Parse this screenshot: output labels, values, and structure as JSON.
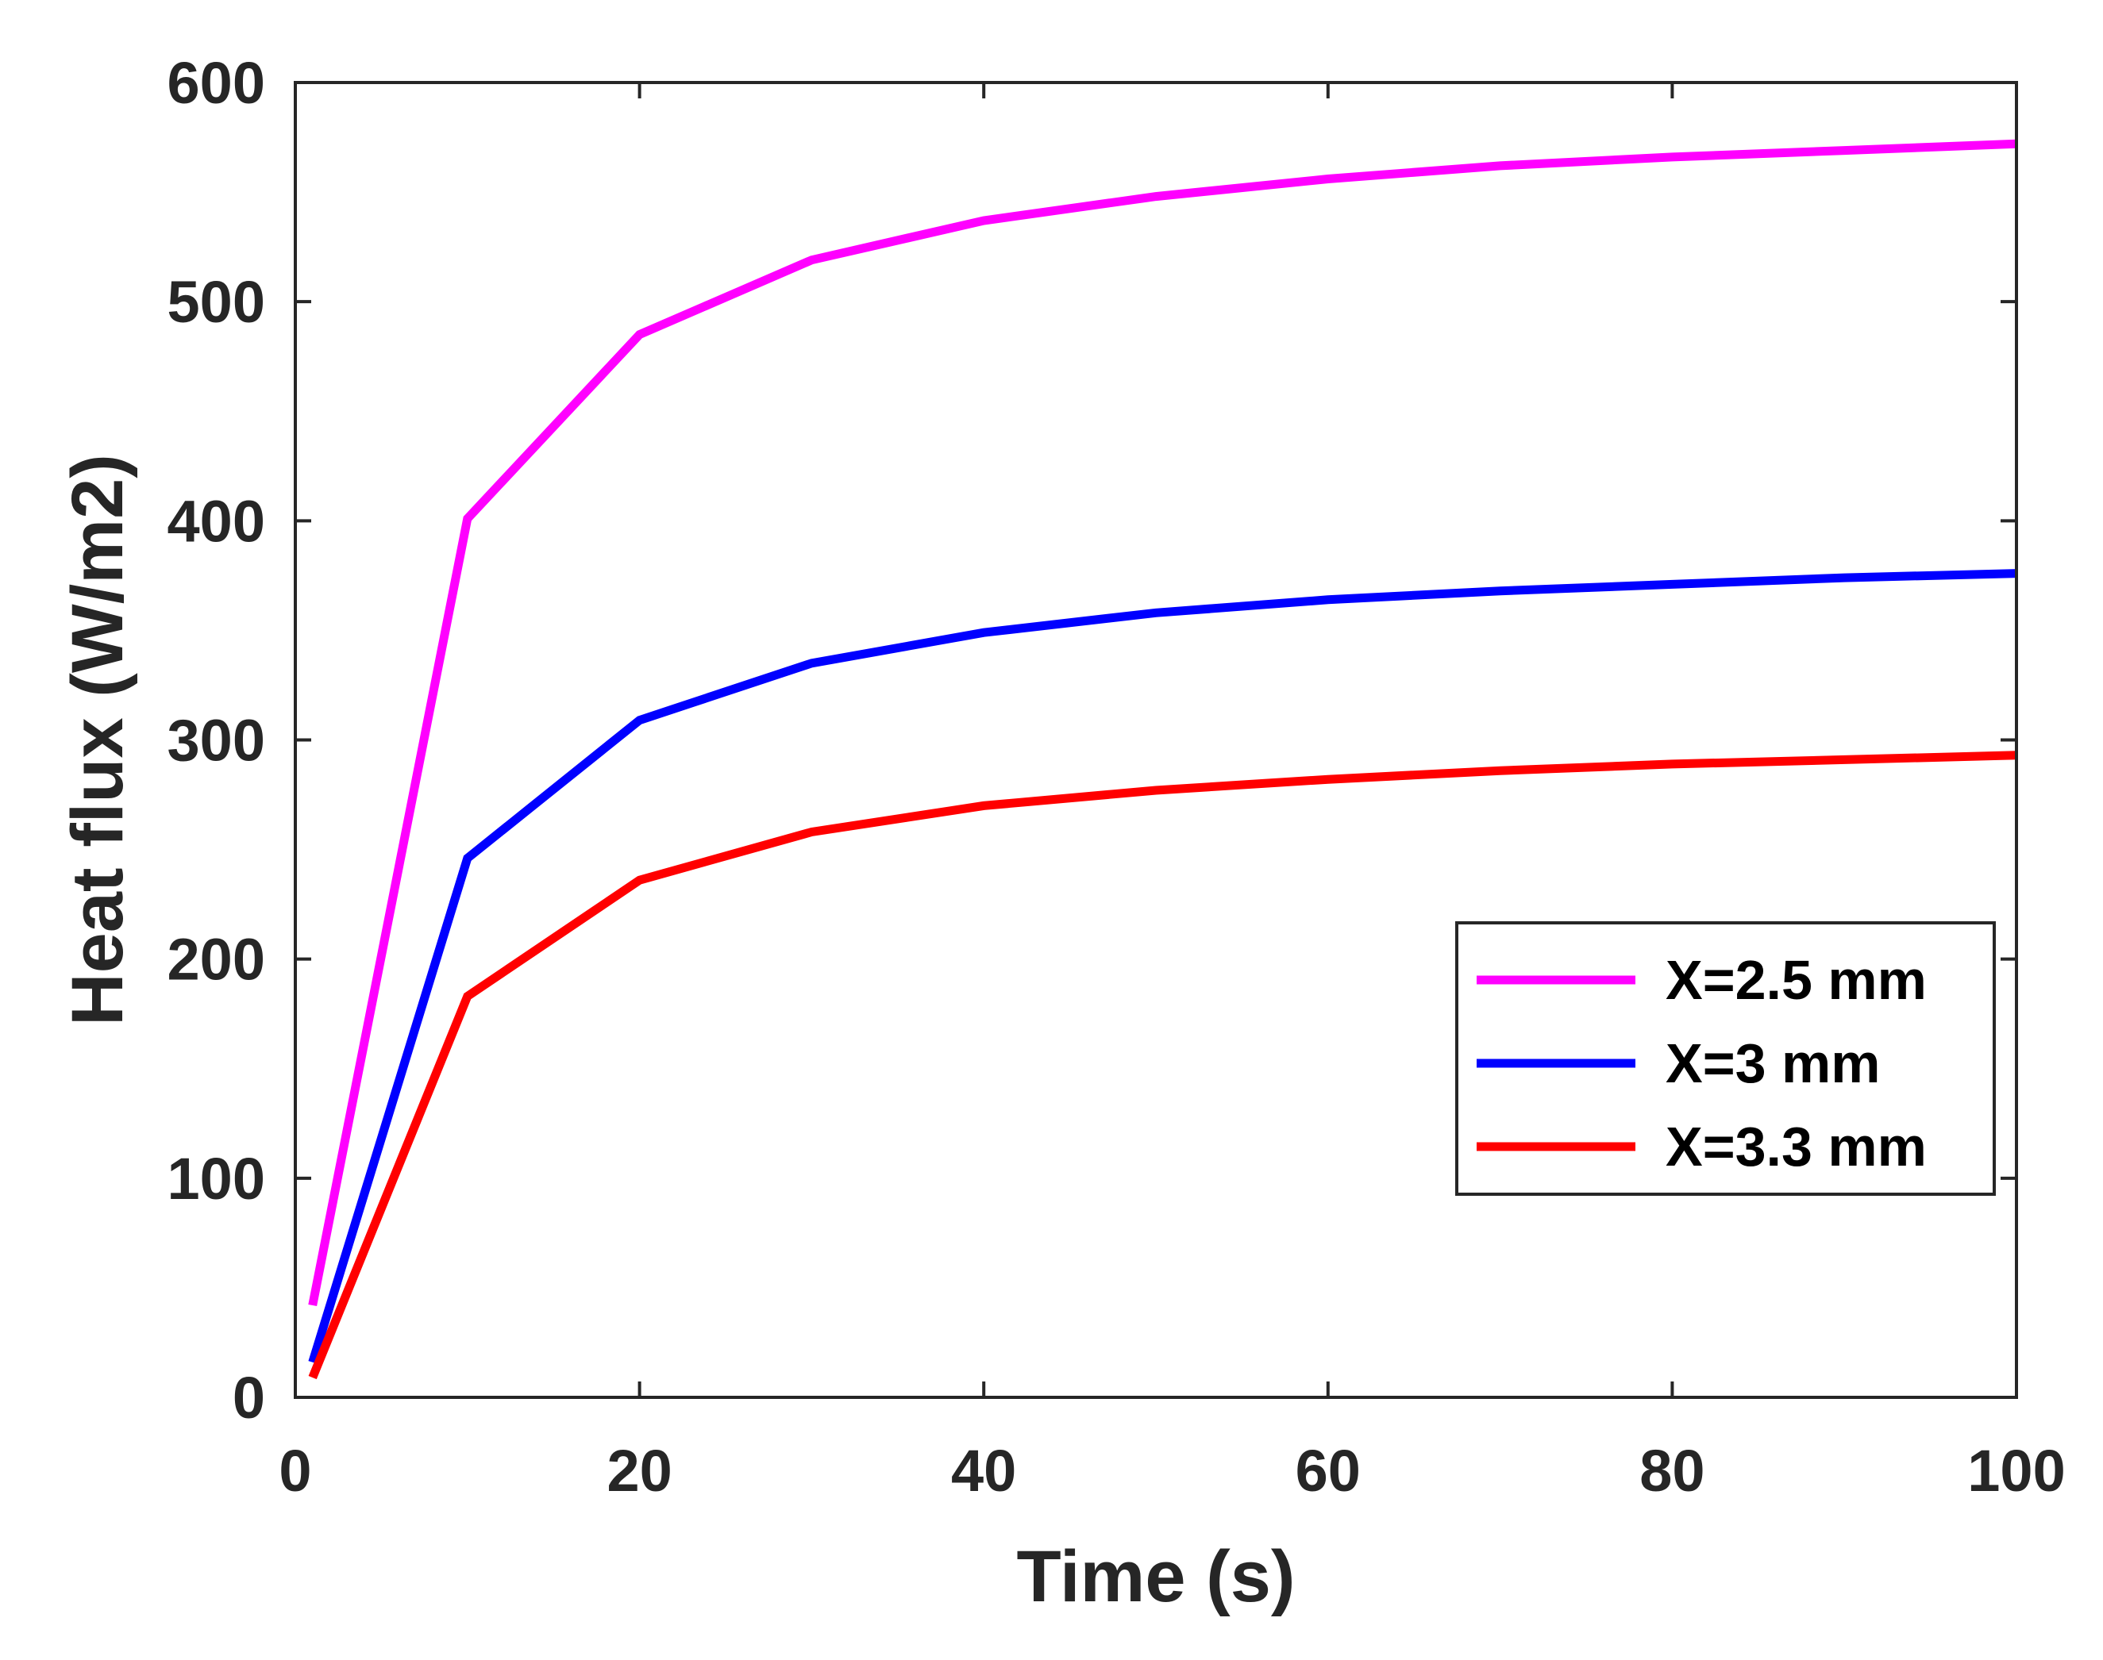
{
  "chart_data": {
    "type": "line",
    "title": "",
    "xlabel": "Time (s)",
    "ylabel": "Heat flux (W/m2)",
    "xlim": [
      0,
      100
    ],
    "ylim": [
      0,
      600
    ],
    "xticks": [
      0,
      20,
      40,
      60,
      80,
      100
    ],
    "yticks": [
      0,
      100,
      200,
      300,
      400,
      500,
      600
    ],
    "x": [
      1,
      10,
      20,
      30,
      40,
      50,
      60,
      70,
      80,
      90,
      100
    ],
    "series": [
      {
        "name": "X=2.5 mm",
        "color": "#ff00ff",
        "values": [
          42,
          401,
          485,
          519,
          537,
          548,
          556,
          562,
          566,
          569,
          572
        ]
      },
      {
        "name": "X=3 mm",
        "color": "#0000ff",
        "values": [
          16,
          246,
          309,
          335,
          349,
          358,
          364,
          368,
          371,
          374,
          376
        ]
      },
      {
        "name": "X=3.3 mm",
        "color": "#ff0000",
        "values": [
          9,
          183,
          236,
          258,
          270,
          277,
          282,
          286,
          289,
          291,
          293
        ]
      }
    ],
    "legend_position": "lower-right",
    "grid": false
  }
}
